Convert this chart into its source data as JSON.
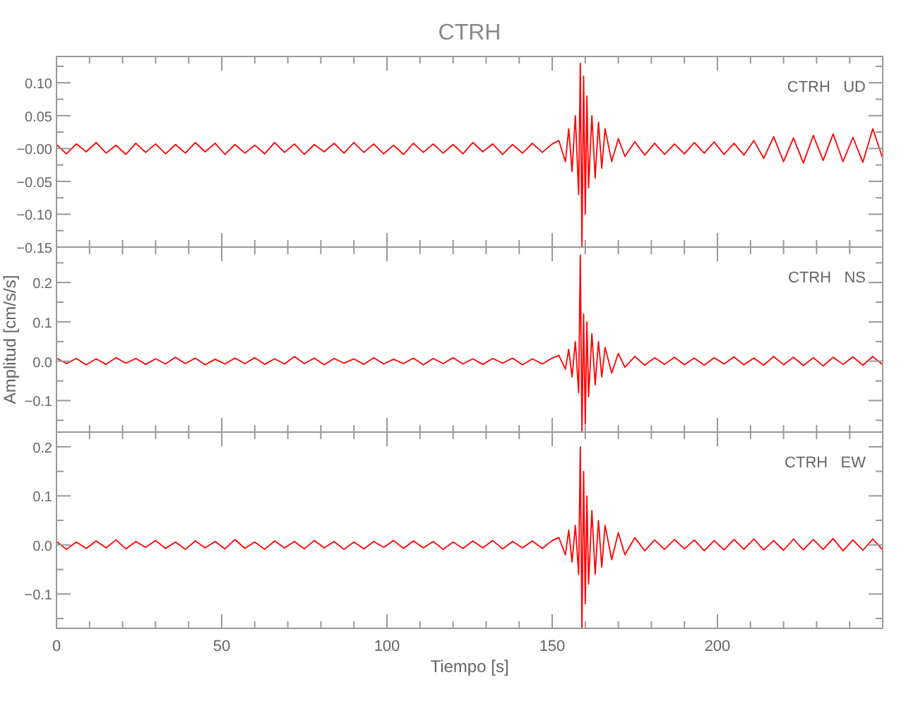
{
  "chart_data": [
    {
      "type": "line",
      "title": "CTRH",
      "annotations": [
        "CTRH   UD"
      ],
      "tick_labels": "y",
      "grid": false,
      "xlim": [
        0,
        250
      ],
      "ylim": [
        -0.15,
        0.14
      ],
      "xticks": [
        0,
        {
          "value": 10,
          "label": null
        },
        {
          "value": 20,
          "label": null
        },
        {
          "value": 30,
          "label": null
        },
        {
          "value": 40,
          "label": null
        },
        50,
        {
          "value": 60,
          "label": null
        },
        {
          "value": 70,
          "label": null
        },
        {
          "value": 80,
          "label": null
        },
        {
          "value": 90,
          "label": null
        },
        100,
        {
          "value": 110,
          "label": null
        },
        {
          "value": 120,
          "label": null
        },
        {
          "value": 130,
          "label": null
        },
        {
          "value": 140,
          "label": null
        },
        150,
        {
          "value": 160,
          "label": null
        },
        {
          "value": 170,
          "label": null
        },
        {
          "value": 180,
          "label": null
        },
        {
          "value": 190,
          "label": null
        },
        200,
        {
          "value": 210,
          "label": null
        },
        {
          "value": 220,
          "label": null
        },
        {
          "value": 230,
          "label": null
        },
        {
          "value": 240,
          "label": null
        }
      ],
      "yticks": [
        {
          "value": -0.15,
          "label": "−0.15"
        },
        {
          "value": -0.125,
          "label": null
        },
        {
          "value": -0.1,
          "label": "−0.10"
        },
        {
          "value": -0.075,
          "label": null
        },
        {
          "value": -0.05,
          "label": "−0.05"
        },
        {
          "value": -0.025,
          "label": null
        },
        {
          "value": 0,
          "label": "−0.00"
        },
        {
          "value": 0.025,
          "label": null
        },
        {
          "value": 0.05,
          "label": "0.05"
        },
        {
          "value": 0.075,
          "label": null
        },
        {
          "value": 0.1,
          "label": "0.10"
        },
        {
          "value": 0.125,
          "label": null
        }
      ],
      "x": [
        0,
        3,
        6,
        9,
        12,
        15,
        18,
        21,
        24,
        27,
        30,
        33,
        36,
        39,
        42,
        45,
        48,
        51,
        54,
        57,
        60,
        63,
        66,
        69,
        72,
        75,
        78,
        81,
        84,
        87,
        90,
        93,
        96,
        99,
        102,
        105,
        108,
        111,
        114,
        117,
        120,
        123,
        126,
        129,
        132,
        135,
        138,
        141,
        144,
        147,
        150,
        152,
        154,
        155,
        156,
        157,
        158,
        158.5,
        159,
        159.5,
        160,
        160.5,
        161,
        162,
        163,
        164,
        165,
        166,
        168,
        170,
        172,
        175,
        178,
        181,
        184,
        187,
        190,
        193,
        196,
        199,
        202,
        205,
        208,
        211,
        214,
        217,
        220,
        223,
        226,
        229,
        232,
        235,
        238,
        241,
        244,
        247,
        250
      ],
      "series": [
        {
          "color": "#ff0000",
          "values": [
            0.006,
            -0.008,
            0.007,
            -0.005,
            0.009,
            -0.007,
            0.005,
            -0.009,
            0.008,
            -0.006,
            0.007,
            -0.008,
            0.006,
            -0.007,
            0.009,
            -0.005,
            0.008,
            -0.009,
            0.006,
            -0.007,
            0.005,
            -0.008,
            0.009,
            -0.006,
            0.007,
            -0.009,
            0.006,
            -0.005,
            0.008,
            -0.007,
            0.009,
            -0.006,
            0.007,
            -0.008,
            0.005,
            -0.009,
            0.008,
            -0.006,
            0.007,
            -0.007,
            0.006,
            -0.008,
            0.009,
            -0.005,
            0.007,
            -0.009,
            0.006,
            -0.007,
            0.008,
            -0.006,
            0.007,
            0.012,
            -0.02,
            0.03,
            -0.035,
            0.05,
            -0.07,
            0.13,
            -0.15,
            0.11,
            -0.1,
            0.08,
            -0.06,
            0.05,
            -0.045,
            0.04,
            -0.03,
            0.03,
            -0.02,
            0.015,
            -0.012,
            0.01,
            -0.01,
            0.008,
            -0.009,
            0.007,
            -0.008,
            0.009,
            -0.007,
            0.01,
            -0.009,
            0.008,
            -0.01,
            0.012,
            -0.015,
            0.018,
            -0.02,
            0.016,
            -0.022,
            0.02,
            -0.018,
            0.022,
            -0.02,
            0.017,
            -0.021,
            0.03,
            -0.015
          ]
        }
      ]
    },
    {
      "type": "line",
      "ylabel": "Amplitud [cm/s/s]",
      "annotations": [
        "CTRH   NS"
      ],
      "tick_labels": "y",
      "grid": false,
      "xlim": [
        0,
        250
      ],
      "ylim": [
        -0.18,
        0.29
      ],
      "xticks": [
        0,
        {
          "value": 10,
          "label": null
        },
        {
          "value": 20,
          "label": null
        },
        {
          "value": 30,
          "label": null
        },
        {
          "value": 40,
          "label": null
        },
        50,
        {
          "value": 60,
          "label": null
        },
        {
          "value": 70,
          "label": null
        },
        {
          "value": 80,
          "label": null
        },
        {
          "value": 90,
          "label": null
        },
        100,
        {
          "value": 110,
          "label": null
        },
        {
          "value": 120,
          "label": null
        },
        {
          "value": 130,
          "label": null
        },
        {
          "value": 140,
          "label": null
        },
        150,
        {
          "value": 160,
          "label": null
        },
        {
          "value": 170,
          "label": null
        },
        {
          "value": 180,
          "label": null
        },
        {
          "value": 190,
          "label": null
        },
        200,
        {
          "value": 210,
          "label": null
        },
        {
          "value": 220,
          "label": null
        },
        {
          "value": 230,
          "label": null
        },
        {
          "value": 240,
          "label": null
        }
      ],
      "yticks": [
        {
          "value": -0.15,
          "label": null
        },
        {
          "value": -0.1,
          "label": "−0.1"
        },
        {
          "value": -0.05,
          "label": null
        },
        {
          "value": 0,
          "label": "0.0"
        },
        {
          "value": 0.05,
          "label": null
        },
        {
          "value": 0.1,
          "label": "0.1"
        },
        {
          "value": 0.15,
          "label": null
        },
        {
          "value": 0.2,
          "label": "0.2"
        },
        {
          "value": 0.25,
          "label": null
        }
      ],
      "x": [
        0,
        3,
        6,
        9,
        12,
        15,
        18,
        21,
        24,
        27,
        30,
        33,
        36,
        39,
        42,
        45,
        48,
        51,
        54,
        57,
        60,
        63,
        66,
        69,
        72,
        75,
        78,
        81,
        84,
        87,
        90,
        93,
        96,
        99,
        102,
        105,
        108,
        111,
        114,
        117,
        120,
        123,
        126,
        129,
        132,
        135,
        138,
        141,
        144,
        147,
        150,
        152,
        154,
        155,
        156,
        157,
        158,
        158.5,
        159,
        159.5,
        160,
        160.5,
        161,
        162,
        163,
        164,
        165,
        166,
        168,
        170,
        172,
        175,
        178,
        181,
        184,
        187,
        190,
        193,
        196,
        199,
        202,
        205,
        208,
        211,
        214,
        217,
        220,
        223,
        226,
        229,
        232,
        235,
        238,
        241,
        244,
        247,
        250
      ],
      "series": [
        {
          "color": "#ff0000",
          "values": [
            0.008,
            -0.006,
            0.007,
            -0.009,
            0.006,
            -0.008,
            0.009,
            -0.005,
            0.007,
            -0.008,
            0.006,
            -0.007,
            0.01,
            -0.006,
            0.008,
            -0.009,
            0.005,
            -0.007,
            0.008,
            -0.006,
            0.009,
            -0.008,
            0.006,
            -0.007,
            0.012,
            -0.006,
            0.008,
            -0.009,
            0.007,
            -0.005,
            0.006,
            -0.008,
            0.009,
            -0.007,
            0.005,
            -0.006,
            0.008,
            -0.009,
            0.007,
            -0.006,
            0.009,
            -0.007,
            0.006,
            -0.008,
            0.007,
            -0.005,
            0.008,
            -0.009,
            0.006,
            -0.007,
            0.008,
            0.015,
            -0.02,
            0.03,
            -0.04,
            0.05,
            -0.08,
            0.27,
            -0.18,
            0.12,
            -0.16,
            0.1,
            -0.09,
            0.07,
            -0.06,
            0.05,
            -0.04,
            0.035,
            -0.03,
            0.02,
            -0.015,
            0.012,
            -0.01,
            0.009,
            -0.008,
            0.01,
            -0.009,
            0.008,
            -0.01,
            0.009,
            -0.007,
            0.011,
            -0.009,
            0.008,
            -0.01,
            0.012,
            -0.009,
            0.01,
            -0.011,
            0.009,
            -0.012,
            0.01,
            -0.008,
            0.011,
            -0.01,
            0.012,
            -0.009
          ]
        }
      ]
    },
    {
      "type": "line",
      "xlabel": "Tiempo [s]",
      "annotations": [
        "CTRH   EW"
      ],
      "grid": false,
      "xlim": [
        0,
        250
      ],
      "ylim": [
        -0.17,
        0.23
      ],
      "xticks": [
        0,
        {
          "value": 10,
          "label": null
        },
        {
          "value": 20,
          "label": null
        },
        {
          "value": 30,
          "label": null
        },
        {
          "value": 40,
          "label": null
        },
        50,
        {
          "value": 60,
          "label": null
        },
        {
          "value": 70,
          "label": null
        },
        {
          "value": 80,
          "label": null
        },
        {
          "value": 90,
          "label": null
        },
        100,
        {
          "value": 110,
          "label": null
        },
        {
          "value": 120,
          "label": null
        },
        {
          "value": 130,
          "label": null
        },
        {
          "value": 140,
          "label": null
        },
        150,
        {
          "value": 160,
          "label": null
        },
        {
          "value": 170,
          "label": null
        },
        {
          "value": 180,
          "label": null
        },
        {
          "value": 190,
          "label": null
        },
        200,
        {
          "value": 210,
          "label": null
        },
        {
          "value": 220,
          "label": null
        },
        {
          "value": 230,
          "label": null
        },
        {
          "value": 240,
          "label": null
        }
      ],
      "yticks": [
        {
          "value": -0.15,
          "label": null
        },
        {
          "value": -0.1,
          "label": "−0.1"
        },
        {
          "value": -0.05,
          "label": null
        },
        {
          "value": 0,
          "label": "0.0"
        },
        {
          "value": 0.05,
          "label": null
        },
        {
          "value": 0.1,
          "label": "0.1"
        },
        {
          "value": 0.15,
          "label": null
        },
        {
          "value": 0.2,
          "label": "0.2"
        }
      ],
      "x": [
        0,
        3,
        6,
        9,
        12,
        15,
        18,
        21,
        24,
        27,
        30,
        33,
        36,
        39,
        42,
        45,
        48,
        51,
        54,
        57,
        60,
        63,
        66,
        69,
        72,
        75,
        78,
        81,
        84,
        87,
        90,
        93,
        96,
        99,
        102,
        105,
        108,
        111,
        114,
        117,
        120,
        123,
        126,
        129,
        132,
        135,
        138,
        141,
        144,
        147,
        150,
        152,
        154,
        155,
        156,
        157,
        158,
        158.5,
        159,
        159.5,
        160,
        160.5,
        161,
        162,
        163,
        164,
        165,
        166,
        168,
        170,
        172,
        175,
        178,
        181,
        184,
        187,
        190,
        193,
        196,
        199,
        202,
        205,
        208,
        211,
        214,
        217,
        220,
        223,
        226,
        229,
        232,
        235,
        238,
        241,
        244,
        247,
        250
      ],
      "series": [
        {
          "color": "#ff0000",
          "values": [
            0.007,
            -0.009,
            0.006,
            -0.007,
            0.008,
            -0.006,
            0.01,
            -0.008,
            0.007,
            -0.005,
            0.009,
            -0.007,
            0.006,
            -0.009,
            0.008,
            -0.006,
            0.007,
            -0.008,
            0.011,
            -0.007,
            0.006,
            -0.009,
            0.008,
            -0.006,
            0.007,
            -0.008,
            0.009,
            -0.006,
            0.007,
            -0.009,
            0.006,
            -0.008,
            0.007,
            -0.005,
            0.009,
            -0.007,
            0.008,
            -0.006,
            0.007,
            -0.009,
            0.006,
            -0.007,
            0.008,
            -0.006,
            0.009,
            -0.008,
            0.007,
            -0.006,
            0.008,
            -0.007,
            0.009,
            0.015,
            -0.02,
            0.03,
            -0.035,
            0.04,
            -0.06,
            0.2,
            -0.17,
            0.15,
            -0.12,
            0.1,
            -0.08,
            0.07,
            -0.06,
            0.05,
            -0.045,
            0.04,
            -0.03,
            0.025,
            -0.02,
            0.015,
            -0.012,
            0.01,
            -0.009,
            0.011,
            -0.008,
            0.01,
            -0.012,
            0.009,
            -0.01,
            0.011,
            -0.009,
            0.012,
            -0.01,
            0.009,
            -0.011,
            0.012,
            -0.01,
            0.011,
            -0.009,
            0.013,
            -0.012,
            0.01,
            -0.011,
            0.012,
            -0.01
          ]
        }
      ]
    }
  ]
}
